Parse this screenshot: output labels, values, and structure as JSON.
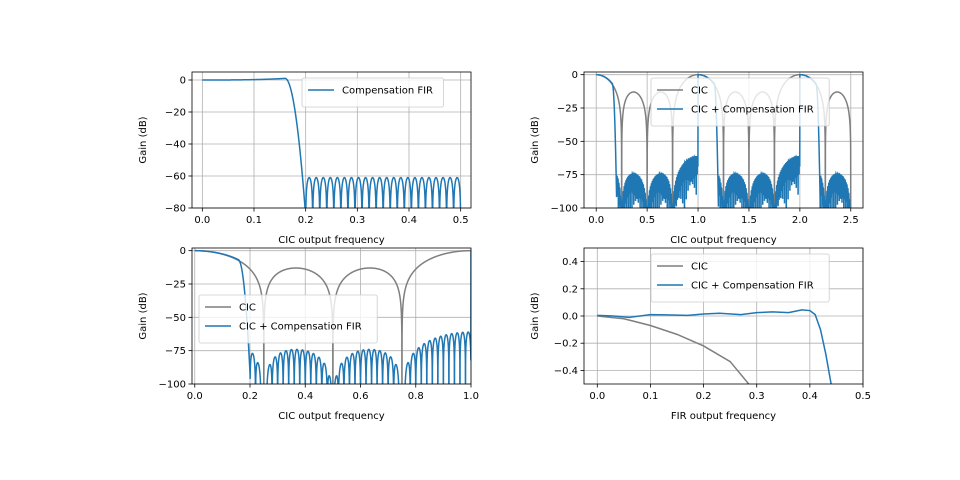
{
  "colors": {
    "cic": "#7f7f7f",
    "fir": "#1f77b4",
    "grid": "#b0b0b0",
    "axis": "#000000"
  },
  "chart_data": [
    {
      "type": "line",
      "title": "",
      "xlabel": "CIC output frequency",
      "ylabel": "Gain (dB)",
      "xlim": [
        -0.02,
        0.52
      ],
      "ylim": [
        -80,
        5
      ],
      "xticks": [
        0.0,
        0.1,
        0.2,
        0.3,
        0.4,
        0.5
      ],
      "xtick_labels": [
        "0.0",
        "0.1",
        "0.2",
        "0.3",
        "0.4",
        "0.5"
      ],
      "yticks": [
        0,
        -20,
        -40,
        -60,
        -80
      ],
      "ytick_labels": [
        "0",
        "−20",
        "−40",
        "−60",
        "−80"
      ],
      "grid": true,
      "legend": "top-right",
      "series": [
        {
          "name": "Compensation FIR",
          "color": "#1f77b4",
          "kind": "fir_response",
          "fc": 0.16,
          "fs": 0.2,
          "stop_peak": -61,
          "floor": -80,
          "ripple_peak": 1.0,
          "ripple_freq": 0.14,
          "lobes": 22,
          "xmax": 0.5
        }
      ]
    },
    {
      "type": "line",
      "title": "",
      "xlabel": "CIC output frequency",
      "ylabel": "Gain (dB)",
      "xlim": [
        -0.12,
        2.62
      ],
      "ylim": [
        -100,
        2
      ],
      "xticks": [
        0.0,
        0.5,
        1.0,
        1.5,
        2.0,
        2.5
      ],
      "xtick_labels": [
        "0.0",
        "0.5",
        "1.0",
        "1.5",
        "2.0",
        "2.5"
      ],
      "yticks": [
        0,
        -25,
        -50,
        -75,
        -100
      ],
      "ytick_labels": [
        "0",
        "−25",
        "−50",
        "−75",
        "−100"
      ],
      "grid": true,
      "legend": "top-right",
      "series": [
        {
          "name": "CIC",
          "color": "#7f7f7f",
          "kind": "cic",
          "xmax": 2.5
        },
        {
          "name": "CIC + Compensation FIR",
          "color": "#1f77b4",
          "kind": "combined_periodic",
          "period": 1.0,
          "fc": 0.16,
          "fs": 0.2,
          "stop_peak": -61,
          "lobes": 90,
          "xmax": 2.5
        }
      ]
    },
    {
      "type": "line",
      "title": "",
      "xlabel": "CIC output frequency",
      "ylabel": "Gain (dB)",
      "xlim": [
        -0.01,
        1.0
      ],
      "ylim": [
        -100,
        2
      ],
      "xticks": [
        0.0,
        0.2,
        0.4,
        0.6,
        0.8,
        1.0
      ],
      "xtick_labels": [
        "0.0",
        "0.2",
        "0.4",
        "0.6",
        "0.8",
        "1.0"
      ],
      "yticks": [
        0,
        -25,
        -50,
        -75,
        -100
      ],
      "ytick_labels": [
        "0",
        "−25",
        "−50",
        "−75",
        "−100"
      ],
      "grid": true,
      "legend": "center-left",
      "series": [
        {
          "name": "CIC",
          "color": "#7f7f7f",
          "kind": "cic",
          "xmax": 1.0
        },
        {
          "name": "CIC + Compensation FIR",
          "color": "#1f77b4",
          "kind": "combined_periodic",
          "period": 1.0,
          "fc": 0.16,
          "fs": 0.2,
          "stop_peak": -61,
          "lobes": 40,
          "xmax": 1.0
        }
      ]
    },
    {
      "type": "line",
      "title": "",
      "xlabel": "FIR output frequency",
      "ylabel": "Gain (dB)",
      "xlim": [
        -0.025,
        0.5
      ],
      "ylim": [
        -0.5,
        0.5
      ],
      "xticks": [
        0.0,
        0.1,
        0.2,
        0.3,
        0.4,
        0.5
      ],
      "xtick_labels": [
        "0.0",
        "0.1",
        "0.2",
        "0.3",
        "0.4",
        "0.5"
      ],
      "yticks": [
        0.4,
        0.2,
        0.0,
        -0.2,
        -0.4
      ],
      "ytick_labels": [
        "0.4",
        "0.2",
        "0.0",
        "−0.2",
        "−0.4"
      ],
      "grid": true,
      "legend": "top-right",
      "series": [
        {
          "name": "CIC",
          "color": "#7f7f7f",
          "kind": "cic_zoom",
          "points": [
            [
              0,
              0
            ],
            [
              0.05,
              -0.02
            ],
            [
              0.1,
              -0.07
            ],
            [
              0.15,
              -0.135
            ],
            [
              0.2,
              -0.22
            ],
            [
              0.25,
              -0.335
            ],
            [
              0.285,
              -0.5
            ]
          ]
        },
        {
          "name": "CIC + Compensation FIR",
          "color": "#1f77b4",
          "kind": "comp_zoom",
          "points": [
            [
              0,
              0.005
            ],
            [
              0.03,
              0.0
            ],
            [
              0.06,
              -0.01
            ],
            [
              0.1,
              0.01
            ],
            [
              0.13,
              0.008
            ],
            [
              0.17,
              0.005
            ],
            [
              0.2,
              0.015
            ],
            [
              0.23,
              0.02
            ],
            [
              0.27,
              0.01
            ],
            [
              0.3,
              0.025
            ],
            [
              0.33,
              0.03
            ],
            [
              0.36,
              0.025
            ],
            [
              0.385,
              0.045
            ],
            [
              0.4,
              0.04
            ],
            [
              0.41,
              0.01
            ],
            [
              0.42,
              -0.1
            ],
            [
              0.43,
              -0.28
            ],
            [
              0.44,
              -0.5
            ]
          ]
        }
      ]
    }
  ]
}
